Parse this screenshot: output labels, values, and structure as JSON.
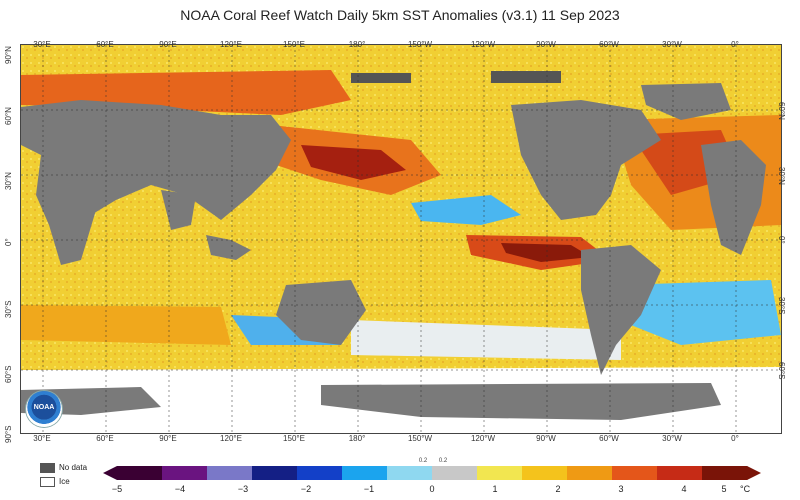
{
  "title": "NOAA Coral Reef Watch Daily 5km SST Anomalies  (v3.1)    11 Sep 2023",
  "map": {
    "lon_labels": [
      "30°E",
      "60°E",
      "90°E",
      "120°E",
      "150°E",
      "180°",
      "150°W",
      "120°W",
      "90°W",
      "60°W",
      "30°W",
      "0°"
    ],
    "lat_labels_left": [
      "90°N",
      "60°N",
      "30°N",
      "0°",
      "30°S",
      "60°S",
      "90°S"
    ],
    "lat_labels_right": [
      "60°N",
      "30°N",
      "0°",
      "30°S",
      "60°S"
    ],
    "colors": {
      "land": "#7a7a7a",
      "ice": "#ffffff",
      "no_data": "#555555",
      "ocean_base": "#f3d33a"
    }
  },
  "logo": "NOAA",
  "legend": {
    "no_data_label": "No data",
    "ice_label": "Ice",
    "no_data_color": "#555555",
    "ice_color": "#ffffff"
  },
  "colorbar": {
    "ticks": [
      "−5",
      "−4",
      "−3",
      "−2",
      "−1",
      "0",
      "1",
      "2",
      "3",
      "4",
      "5"
    ],
    "small_ticks": [
      "0.2",
      "0.2"
    ],
    "unit": "°C",
    "colors": [
      "#3a0033",
      "#6a1480",
      "#7a78c8",
      "#141f85",
      "#1340c8",
      "#1ba4ee",
      "#8fd8f0",
      "#c8c8c8",
      "#f2e650",
      "#f4c31c",
      "#ef9a14",
      "#e4561a",
      "#c62b16",
      "#7a1408"
    ]
  }
}
